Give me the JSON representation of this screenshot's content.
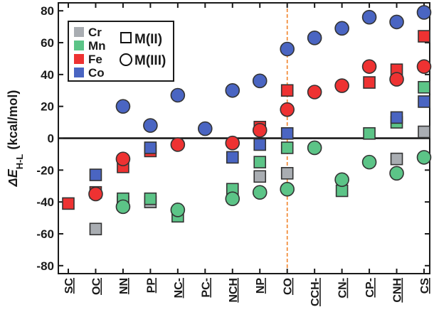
{
  "chart_data": {
    "type": "scatter",
    "ylabel_main": "ΔE",
    "ylabel_sub": "H-L",
    "ylabel_unit": "(kcal/mol)",
    "ylim": [
      -85,
      85
    ],
    "yticks": [
      -80,
      -60,
      -40,
      -20,
      0,
      20,
      40,
      60,
      80
    ],
    "categories": [
      "SC",
      "OC",
      "NN",
      "PP",
      "NC",
      "PC",
      "NCH",
      "NP",
      "CO",
      "CCH",
      "CN",
      "CP",
      "CNH",
      "CS"
    ],
    "category_ticks": [
      "SC",
      "OC",
      "NN",
      "PP",
      "NC-",
      "PC-",
      "NCH",
      "NP",
      "CO",
      "CCH-",
      "CN-",
      "CP-",
      "CNH",
      "CS"
    ],
    "reference_line_category": "CO",
    "grid": false,
    "legend_position": "top-left",
    "metal_legend": [
      {
        "metal": "Cr",
        "color": "#a9adb2"
      },
      {
        "metal": "Mn",
        "color": "#5cc487"
      },
      {
        "metal": "Fe",
        "color": "#ee3232"
      },
      {
        "metal": "Co",
        "color": "#4a65c2"
      }
    ],
    "marker_legend": [
      {
        "label": "M(II)",
        "marker": "square"
      },
      {
        "label": "M(III)",
        "marker": "circle"
      }
    ],
    "series": [
      {
        "metal": "Cr",
        "oxidation": "M(II)",
        "values": [
          null,
          -57,
          -40,
          -40,
          null,
          null,
          null,
          -24,
          -22,
          null,
          null,
          null,
          -13,
          4
        ]
      },
      {
        "metal": "Mn",
        "oxidation": "M(II)",
        "values": [
          null,
          null,
          -38,
          -38,
          -49,
          null,
          -32,
          -15,
          -6,
          null,
          -33,
          3,
          10,
          32
        ]
      },
      {
        "metal": "Fe",
        "oxidation": "M(II)",
        "values": [
          -41,
          -34,
          -18,
          -8,
          null,
          null,
          null,
          7,
          30,
          null,
          null,
          35,
          43,
          64
        ]
      },
      {
        "metal": "Co",
        "oxidation": "M(II)",
        "values": [
          null,
          -23,
          null,
          -6,
          null,
          null,
          -12,
          -4,
          3,
          null,
          null,
          null,
          13,
          23
        ]
      },
      {
        "metal": "Mn",
        "oxidation": "M(III)",
        "values": [
          null,
          null,
          -43,
          null,
          -45,
          null,
          -38,
          -34,
          -32,
          -6,
          -26,
          -15,
          -22,
          -12
        ]
      },
      {
        "metal": "Fe",
        "oxidation": "M(III)",
        "values": [
          null,
          -35,
          -13,
          null,
          -4,
          null,
          -3,
          5,
          18,
          29,
          33,
          45,
          37,
          45
        ]
      },
      {
        "metal": "Co",
        "oxidation": "M(III)",
        "values": [
          null,
          null,
          20,
          8,
          27,
          6,
          30,
          36,
          56,
          63,
          69,
          76,
          73,
          79
        ]
      }
    ]
  }
}
